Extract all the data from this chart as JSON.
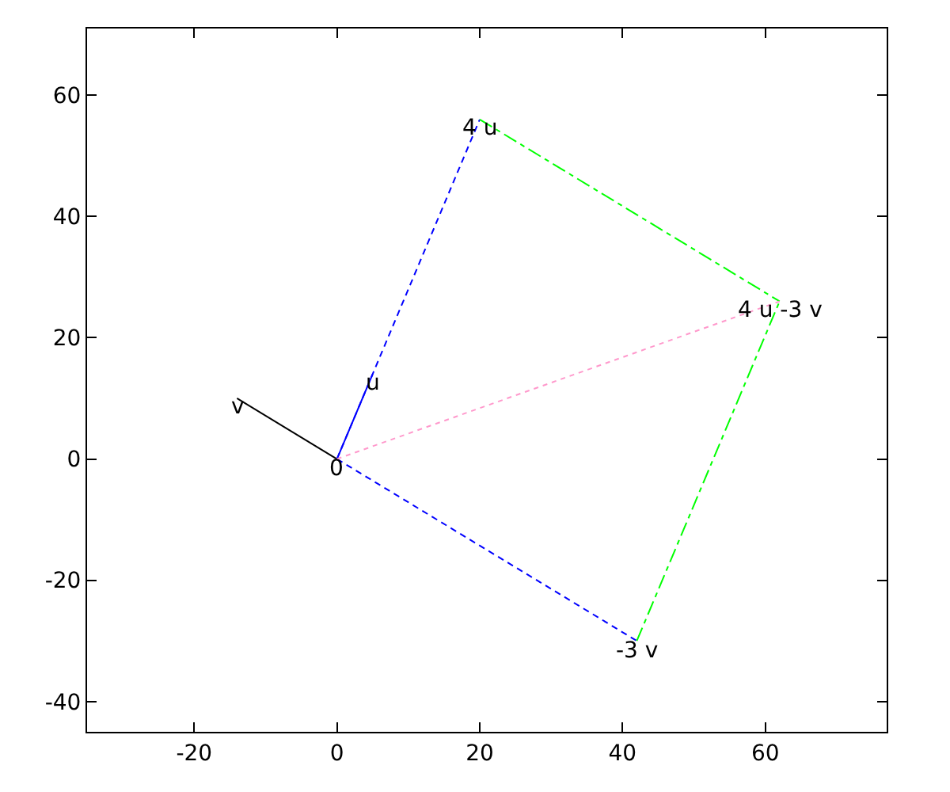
{
  "chart_data": {
    "type": "line",
    "xlim": [
      -35,
      77
    ],
    "ylim": [
      -45,
      71
    ],
    "xticks": [
      -20,
      0,
      20,
      40,
      60
    ],
    "yticks": [
      -40,
      -20,
      0,
      20,
      40,
      60
    ],
    "grid": false,
    "marker": "none",
    "series": [
      {
        "x": [
          0,
          5
        ],
        "values": [
          0,
          14
        ],
        "color": "#0000ff",
        "line_style": "solid"
      },
      {
        "x": [
          0,
          -14
        ],
        "values": [
          0,
          10
        ],
        "color": "#000000",
        "line_style": "solid"
      },
      {
        "x": [
          0,
          20
        ],
        "values": [
          0,
          56
        ],
        "color": "#0000ff",
        "line_style": "dashed"
      },
      {
        "x": [
          0,
          42
        ],
        "values": [
          0,
          -30
        ],
        "color": "#0000ff",
        "line_style": "dashed"
      },
      {
        "x": [
          20,
          62
        ],
        "values": [
          56,
          26
        ],
        "color": "#00ff00",
        "line_style": "dashdot"
      },
      {
        "x": [
          42,
          62
        ],
        "values": [
          -30,
          26
        ],
        "color": "#00ff00",
        "line_style": "dashdot"
      },
      {
        "x": [
          0,
          62
        ],
        "values": [
          0,
          26
        ],
        "color": "#ff99cc",
        "line_style": "dotted"
      }
    ],
    "annotations": [
      {
        "text": "u",
        "x": 5,
        "y": 14
      },
      {
        "text": "v",
        "x": -14,
        "y": 10
      },
      {
        "text": "0",
        "x": 0,
        "y": 0
      },
      {
        "text": "4 u",
        "x": 20,
        "y": 56
      },
      {
        "text": "4 u -3 v",
        "x": 62,
        "y": 26
      },
      {
        "text": "-3 v",
        "x": 42,
        "y": -30
      }
    ]
  }
}
